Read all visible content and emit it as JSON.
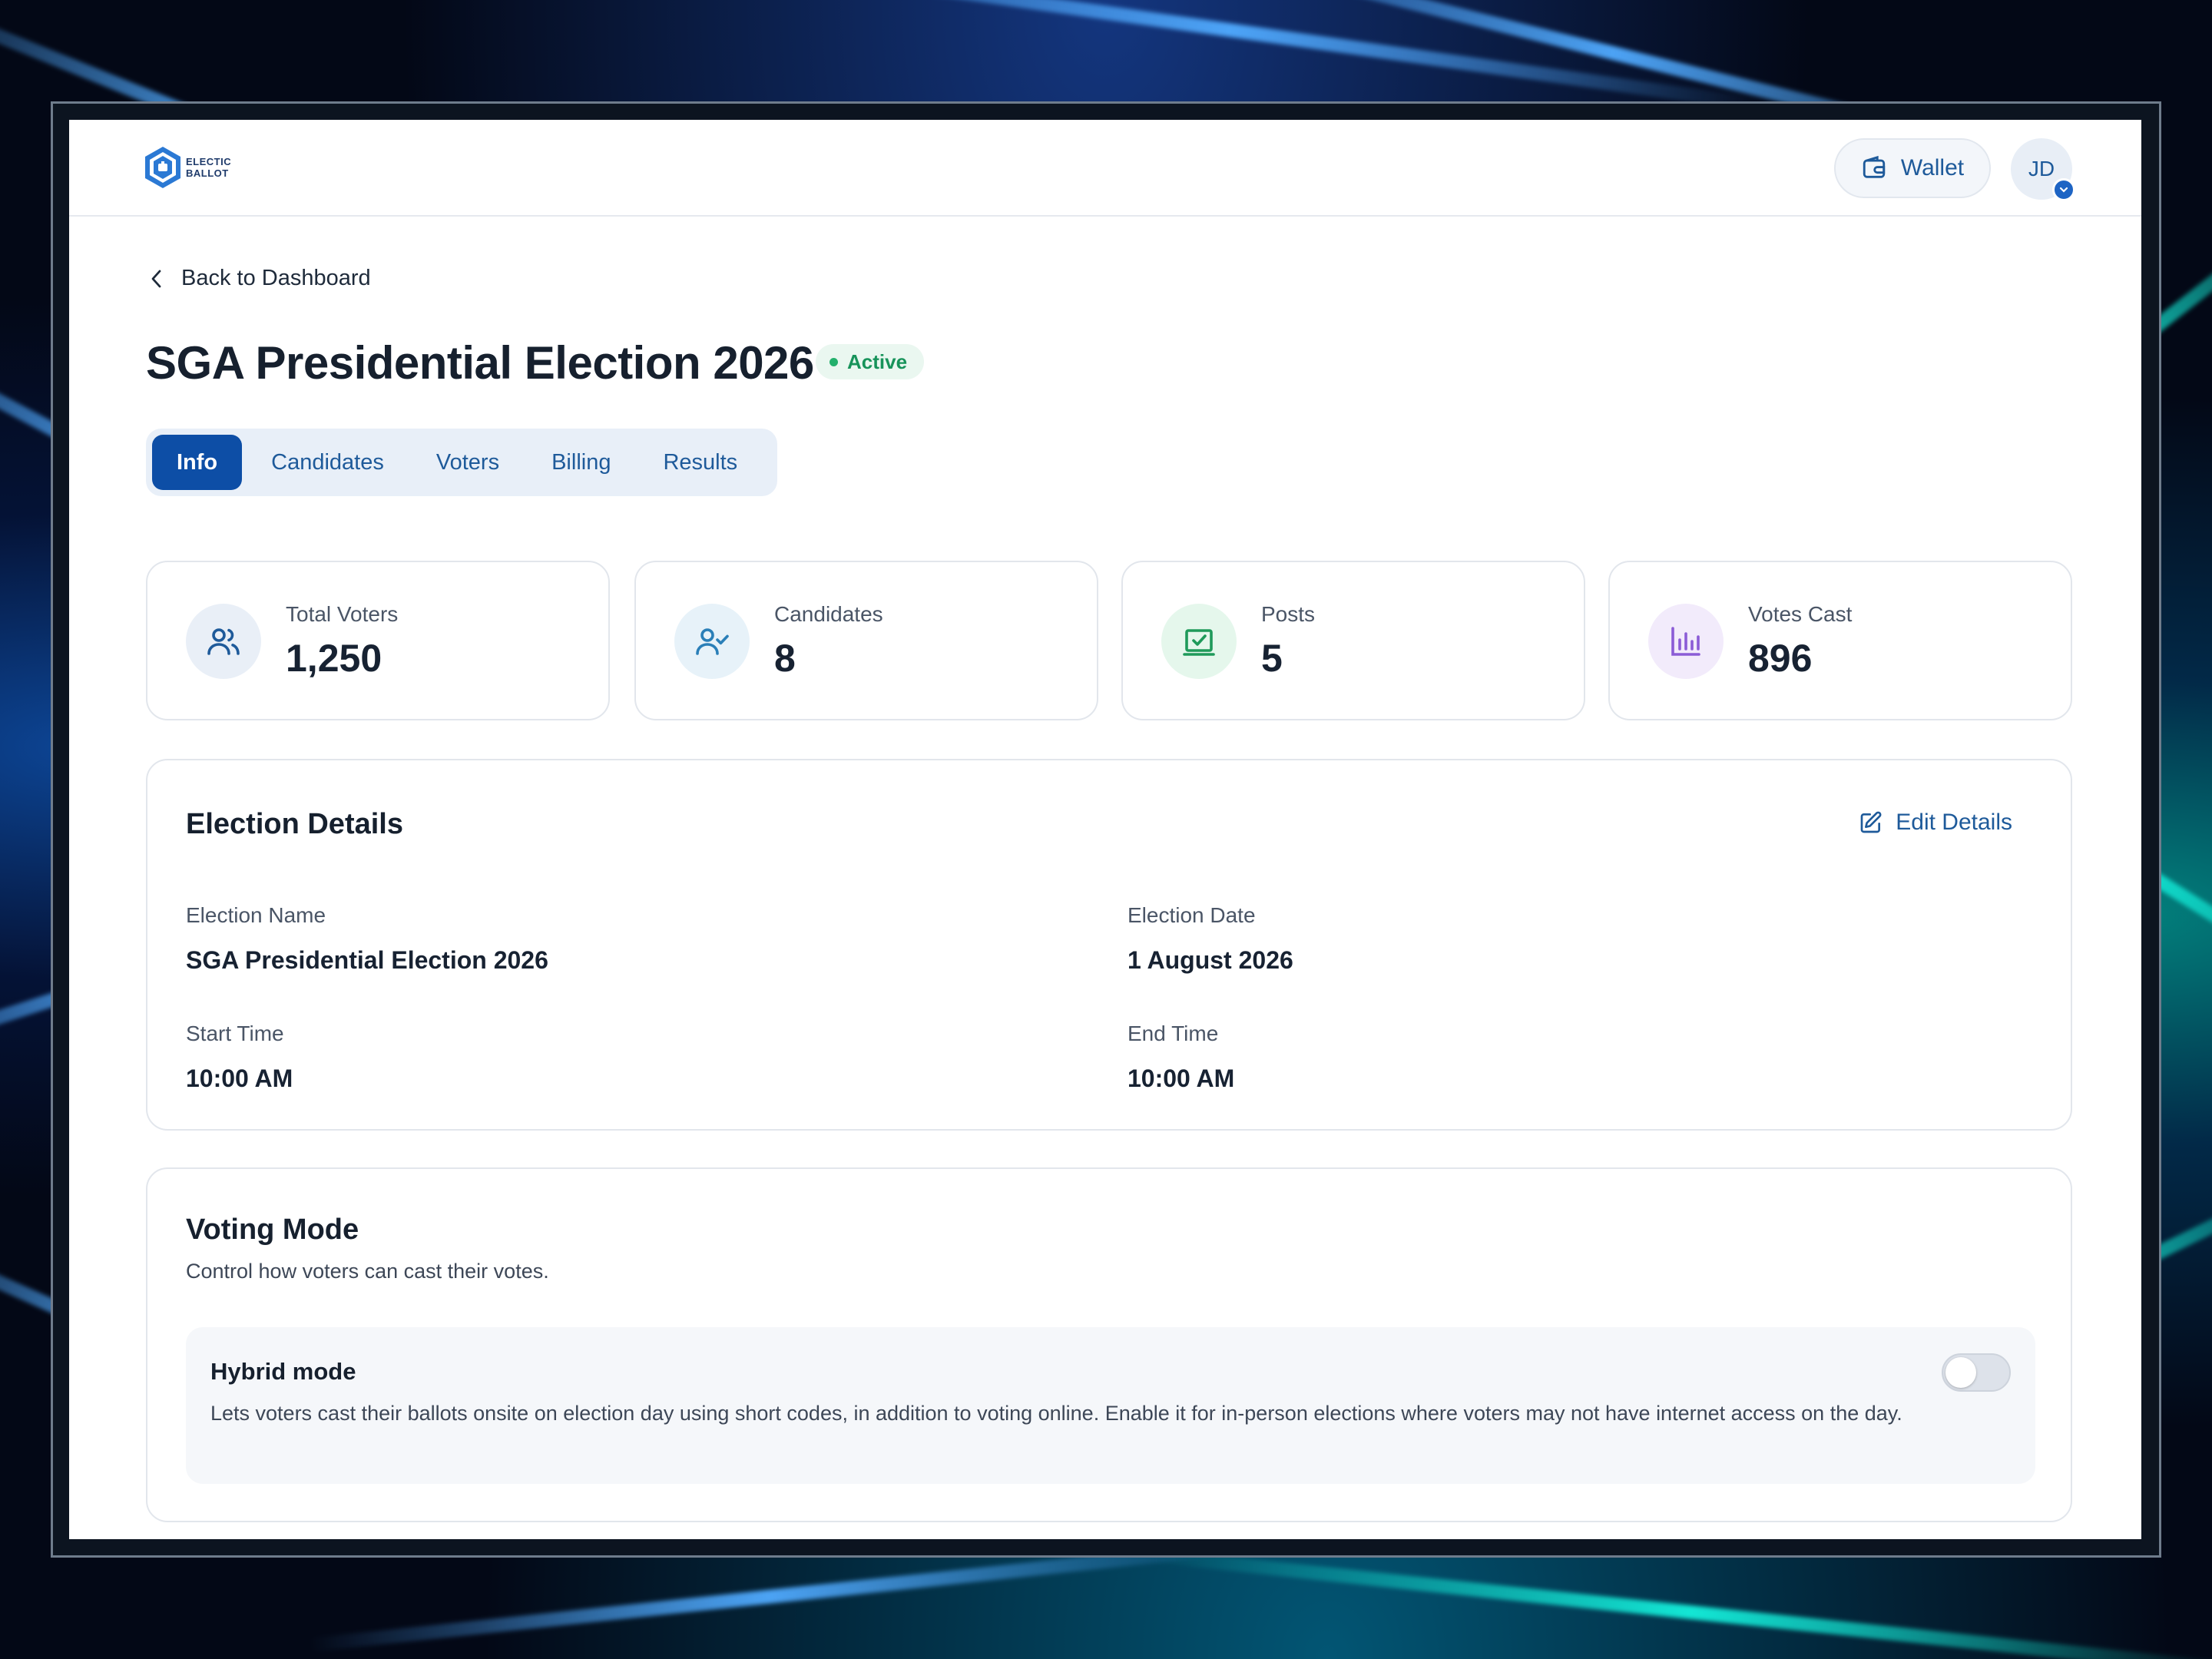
{
  "brand": {
    "logo_text_line1": "ELECTIC",
    "logo_text_line2": "BALLOT"
  },
  "header": {
    "wallet_label": "Wallet",
    "avatar_initials": "JD"
  },
  "nav": {
    "back_label": "Back to Dashboard"
  },
  "election": {
    "title": "SGA Presidential Election 2026",
    "status": "Active"
  },
  "tabs": [
    {
      "label": "Info",
      "active": true
    },
    {
      "label": "Candidates",
      "active": false
    },
    {
      "label": "Voters",
      "active": false
    },
    {
      "label": "Billing",
      "active": false
    },
    {
      "label": "Results",
      "active": false
    }
  ],
  "stats": [
    {
      "label": "Total Voters",
      "value": "1,250",
      "icon": "users-icon"
    },
    {
      "label": "Candidates",
      "value": "8",
      "icon": "user-check-icon"
    },
    {
      "label": "Posts",
      "value": "5",
      "icon": "ballot-box-icon"
    },
    {
      "label": "Votes Cast",
      "value": "896",
      "icon": "bar-chart-icon"
    }
  ],
  "details": {
    "title": "Election Details",
    "edit_label": "Edit Details",
    "fields": [
      {
        "label": "Election Name",
        "value": "SGA Presidential Election 2026"
      },
      {
        "label": "Election Date",
        "value": "1 August 2026"
      },
      {
        "label": "Start Time",
        "value": "10:00 AM"
      },
      {
        "label": "End Time",
        "value": "10:00 AM"
      }
    ]
  },
  "voting_mode": {
    "title": "Voting Mode",
    "subtitle": "Control how voters can cast their votes.",
    "hybrid": {
      "title": "Hybrid mode",
      "description": "Lets voters cast their ballots onsite on election day using short codes, in addition to voting online. Enable it for in-person elections where voters may not have internet access on the day.",
      "enabled": false
    }
  },
  "colors": {
    "primary": "#0d4ea6",
    "accent_blue": "#1e5a9a",
    "success": "#17935a",
    "success_bg": "#eaf7f0"
  }
}
